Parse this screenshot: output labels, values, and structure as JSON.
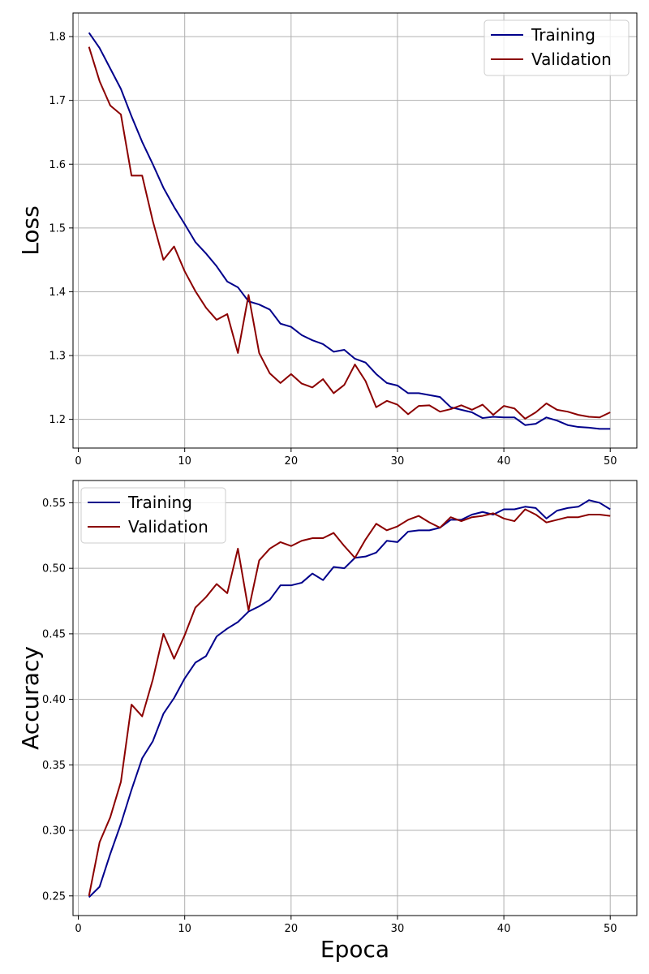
{
  "colors": {
    "training": "#00008b",
    "validation": "#8b0000",
    "grid": "#b0b0b0"
  },
  "chart_data": [
    {
      "type": "line",
      "ylabel": "Loss",
      "xlabel": "",
      "xlim": [
        -0.5,
        52.5
      ],
      "ylim": [
        1.155,
        1.837
      ],
      "xticks": [
        0,
        10,
        20,
        30,
        40,
        50
      ],
      "yticks": [
        1.2,
        1.3,
        1.4,
        1.5,
        1.6,
        1.7,
        1.8
      ],
      "ytick_labels": [
        "1.2",
        "1.3",
        "1.4",
        "1.5",
        "1.6",
        "1.7",
        "1.8"
      ],
      "grid": true,
      "legend": "top-right",
      "x": [
        1,
        2,
        3,
        4,
        5,
        6,
        7,
        8,
        9,
        10,
        11,
        12,
        13,
        14,
        15,
        16,
        17,
        18,
        19,
        20,
        21,
        22,
        23,
        24,
        25,
        26,
        27,
        28,
        29,
        30,
        31,
        32,
        33,
        34,
        35,
        36,
        37,
        38,
        39,
        40,
        41,
        42,
        43,
        44,
        45,
        46,
        47,
        48,
        49,
        50
      ],
      "series": [
        {
          "name": "Training",
          "color": "#00008b",
          "values": [
            1.806,
            1.782,
            1.75,
            1.718,
            1.675,
            1.635,
            1.6,
            1.563,
            1.533,
            1.506,
            1.478,
            1.46,
            1.44,
            1.416,
            1.407,
            1.385,
            1.38,
            1.372,
            1.35,
            1.345,
            1.332,
            1.324,
            1.318,
            1.306,
            1.309,
            1.295,
            1.289,
            1.271,
            1.257,
            1.253,
            1.241,
            1.241,
            1.238,
            1.235,
            1.219,
            1.215,
            1.211,
            1.202,
            1.204,
            1.203,
            1.203,
            1.191,
            1.193,
            1.203,
            1.198,
            1.191,
            1.188,
            1.187,
            1.185,
            1.185
          ]
        },
        {
          "name": "Validation",
          "color": "#8b0000",
          "values": [
            1.784,
            1.73,
            1.692,
            1.678,
            1.582,
            1.582,
            1.511,
            1.45,
            1.471,
            1.432,
            1.401,
            1.375,
            1.356,
            1.365,
            1.304,
            1.395,
            1.304,
            1.272,
            1.257,
            1.271,
            1.256,
            1.25,
            1.263,
            1.241,
            1.254,
            1.286,
            1.26,
            1.219,
            1.229,
            1.223,
            1.208,
            1.221,
            1.222,
            1.212,
            1.216,
            1.222,
            1.215,
            1.223,
            1.207,
            1.221,
            1.217,
            1.201,
            1.211,
            1.225,
            1.215,
            1.212,
            1.207,
            1.204,
            1.203,
            1.211
          ]
        }
      ]
    },
    {
      "type": "line",
      "ylabel": "Accuracy",
      "xlabel": "Epoca",
      "xlim": [
        -0.5,
        52.5
      ],
      "ylim": [
        0.235,
        0.567
      ],
      "xticks": [
        0,
        10,
        20,
        30,
        40,
        50
      ],
      "yticks": [
        0.25,
        0.3,
        0.35,
        0.4,
        0.45,
        0.5,
        0.55
      ],
      "ytick_labels": [
        "0.25",
        "0.30",
        "0.35",
        "0.40",
        "0.45",
        "0.50",
        "0.55"
      ],
      "grid": true,
      "legend": "top-left",
      "x": [
        1,
        2,
        3,
        4,
        5,
        6,
        7,
        8,
        9,
        10,
        11,
        12,
        13,
        14,
        15,
        16,
        17,
        18,
        19,
        20,
        21,
        22,
        23,
        24,
        25,
        26,
        27,
        28,
        29,
        30,
        31,
        32,
        33,
        34,
        35,
        36,
        37,
        38,
        39,
        40,
        41,
        42,
        43,
        44,
        45,
        46,
        47,
        48,
        49,
        50
      ],
      "series": [
        {
          "name": "Training",
          "color": "#00008b",
          "values": [
            0.249,
            0.257,
            0.282,
            0.305,
            0.331,
            0.355,
            0.368,
            0.389,
            0.401,
            0.416,
            0.428,
            0.433,
            0.448,
            0.454,
            0.459,
            0.467,
            0.471,
            0.476,
            0.487,
            0.487,
            0.489,
            0.496,
            0.491,
            0.501,
            0.5,
            0.508,
            0.509,
            0.512,
            0.521,
            0.52,
            0.528,
            0.529,
            0.529,
            0.531,
            0.537,
            0.537,
            0.541,
            0.543,
            0.541,
            0.545,
            0.545,
            0.547,
            0.546,
            0.538,
            0.544,
            0.546,
            0.547,
            0.552,
            0.55,
            0.545
          ]
        },
        {
          "name": "Validation",
          "color": "#8b0000",
          "values": [
            0.25,
            0.291,
            0.31,
            0.337,
            0.396,
            0.387,
            0.415,
            0.45,
            0.431,
            0.449,
            0.47,
            0.478,
            0.488,
            0.481,
            0.515,
            0.468,
            0.506,
            0.515,
            0.52,
            0.517,
            0.521,
            0.523,
            0.523,
            0.527,
            0.517,
            0.508,
            0.522,
            0.534,
            0.529,
            0.532,
            0.537,
            0.54,
            0.535,
            0.531,
            0.539,
            0.536,
            0.539,
            0.54,
            0.542,
            0.538,
            0.536,
            0.545,
            0.541,
            0.535,
            0.537,
            0.539,
            0.539,
            0.541,
            0.541,
            0.54
          ]
        }
      ]
    }
  ]
}
